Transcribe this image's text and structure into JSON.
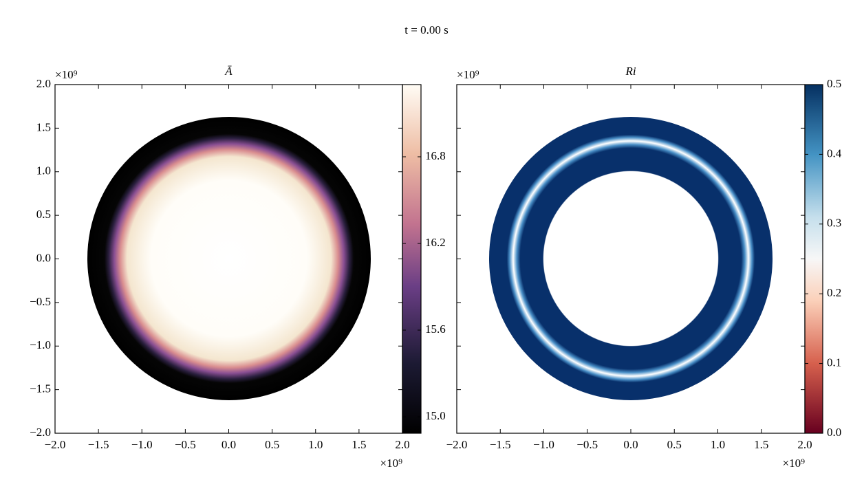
{
  "title": "t = 0.00 s",
  "chart_data": [
    {
      "type": "heatmap",
      "title": "Ā",
      "x_offset_label": "×10⁹",
      "y_offset_label": "×10⁹",
      "xlim": [
        -2,
        2
      ],
      "ylim": [
        -2,
        2
      ],
      "xticks": [
        {
          "value": -2,
          "label": "−2.0"
        },
        {
          "value": -1.5,
          "label": "−1.5"
        },
        {
          "value": -1,
          "label": "−1.0"
        },
        {
          "value": -0.5,
          "label": "−0.5"
        },
        {
          "value": 0,
          "label": "0.0"
        },
        0.5,
        {
          "value": 1,
          "label": "1.0"
        },
        1.5,
        {
          "value": 2,
          "label": "2.0"
        }
      ],
      "yticks": [
        {
          "value": -2,
          "label": "−2.0"
        },
        {
          "value": -1.5,
          "label": "−1.5"
        },
        {
          "value": -1,
          "label": "−1.0"
        },
        {
          "value": -0.5,
          "label": "−0.5"
        },
        {
          "value": 0,
          "label": "0.0"
        },
        0.5,
        {
          "value": 1,
          "label": "1.0"
        },
        1.5,
        {
          "value": 2,
          "label": "2.0"
        }
      ],
      "show_ytick_labels": true,
      "clim": [
        14.886,
        17.3
      ],
      "cticks": [
        {
          "value": 15,
          "label": "15.0"
        },
        15.6,
        16.2,
        16.8
      ]
    },
    {
      "type": "heatmap",
      "title": "Ri",
      "x_offset_label": "×10⁹",
      "y_offset_label": "×10⁹",
      "xlim": [
        -2,
        2
      ],
      "ylim": [
        -2,
        2
      ],
      "xticks": [
        {
          "value": -2,
          "label": "−2.0"
        },
        {
          "value": -1.5,
          "label": "−1.5"
        },
        {
          "value": -1,
          "label": "−1.0"
        },
        {
          "value": -0.5,
          "label": "−0.5"
        },
        {
          "value": 0,
          "label": "0.0"
        },
        0.5,
        {
          "value": 1,
          "label": "1.0"
        },
        1.5,
        {
          "value": 2,
          "label": "2.0"
        }
      ],
      "yticks": [
        -2,
        -1.5,
        -1,
        -0.5,
        0,
        0.5,
        1,
        1.5,
        2
      ],
      "show_ytick_labels": false,
      "clim": [
        0,
        0.5
      ],
      "cticks": [
        {
          "value": 0,
          "label": "0.0"
        },
        0.1,
        0.2,
        0.3,
        0.4,
        0.5
      ]
    }
  ]
}
